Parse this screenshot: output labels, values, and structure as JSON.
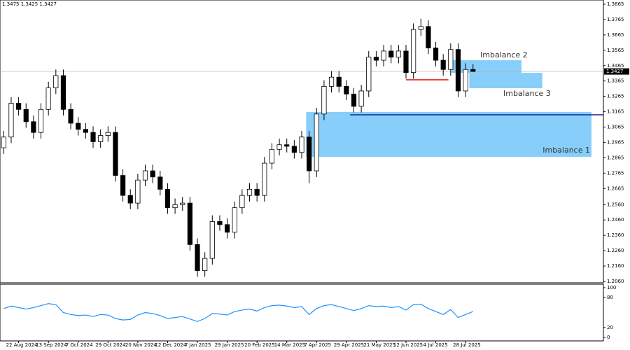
{
  "chart_data": [
    {
      "type": "candlestick",
      "header": "1.3475 1.3425 1.3427",
      "xlim": [
        0,
        81
      ],
      "ylim": [
        1.206,
        1.3865
      ],
      "yticks": [
        1.3865,
        1.3765,
        1.3665,
        1.3565,
        1.3465,
        1.3365,
        1.3265,
        1.3165,
        1.3065,
        1.2965,
        1.2865,
        1.2765,
        1.2665,
        {
          "value": 1.256,
          "label": "1.2560"
        },
        {
          "value": 1.246,
          "label": "1.2460"
        },
        {
          "value": 1.236,
          "label": "1.2360"
        },
        {
          "value": 1.226,
          "label": "1.2260"
        },
        {
          "value": 1.216,
          "label": "1.2160"
        },
        {
          "value": 1.206,
          "label": "1.2060"
        }
      ],
      "current_price": {
        "value": 1.3427,
        "label": "1.3427"
      },
      "up_color": "#ffffff",
      "down_color": "#000000",
      "candles": [
        [
          1.293,
          1.304,
          1.289,
          1.3
        ],
        [
          1.3,
          1.326,
          1.296,
          1.322
        ],
        [
          1.322,
          1.326,
          1.314,
          1.318
        ],
        [
          1.318,
          1.322,
          1.306,
          1.31
        ],
        [
          1.31,
          1.314,
          1.299,
          1.303
        ],
        [
          1.303,
          1.322,
          1.299,
          1.318
        ],
        [
          1.318,
          1.336,
          1.314,
          1.332
        ],
        [
          1.332,
          1.344,
          1.328,
          1.34
        ],
        [
          1.34,
          1.344,
          1.314,
          1.318
        ],
        [
          1.318,
          1.322,
          1.305,
          1.309
        ],
        [
          1.309,
          1.313,
          1.301,
          1.305
        ],
        [
          1.305,
          1.309,
          1.299,
          1.303
        ],
        [
          1.303,
          1.307,
          1.293,
          1.297
        ],
        [
          1.297,
          1.305,
          1.293,
          1.301
        ],
        [
          1.301,
          1.307,
          1.297,
          1.303
        ],
        [
          1.303,
          1.307,
          1.271,
          1.275
        ],
        [
          1.275,
          1.279,
          1.258,
          1.262
        ],
        [
          1.262,
          1.266,
          1.253,
          1.257
        ],
        [
          1.257,
          1.276,
          1.253,
          1.272
        ],
        [
          1.272,
          1.282,
          1.268,
          1.278
        ],
        [
          1.278,
          1.282,
          1.27,
          1.274
        ],
        [
          1.274,
          1.278,
          1.262,
          1.266
        ],
        [
          1.266,
          1.27,
          1.25,
          1.254
        ],
        [
          1.254,
          1.26,
          1.25,
          1.256
        ],
        [
          1.256,
          1.261,
          1.252,
          1.257
        ],
        [
          1.257,
          1.261,
          1.226,
          1.23
        ],
        [
          1.23,
          1.234,
          1.209,
          1.213
        ],
        [
          1.213,
          1.225,
          1.209,
          1.221
        ],
        [
          1.221,
          1.249,
          1.217,
          1.245
        ],
        [
          1.245,
          1.249,
          1.239,
          1.243
        ],
        [
          1.243,
          1.247,
          1.234,
          1.238
        ],
        [
          1.238,
          1.258,
          1.234,
          1.254
        ],
        [
          1.254,
          1.266,
          1.25,
          1.262
        ],
        [
          1.262,
          1.27,
          1.258,
          1.266
        ],
        [
          1.266,
          1.27,
          1.258,
          1.262
        ],
        [
          1.262,
          1.287,
          1.258,
          1.283
        ],
        [
          1.283,
          1.296,
          1.279,
          1.292
        ],
        [
          1.292,
          1.299,
          1.288,
          1.295
        ],
        [
          1.295,
          1.299,
          1.29,
          1.294
        ],
        [
          1.294,
          1.298,
          1.286,
          1.29
        ],
        [
          1.29,
          1.304,
          1.286,
          1.3
        ],
        [
          1.3,
          1.304,
          1.27,
          1.278
        ],
        [
          1.278,
          1.319,
          1.274,
          1.315
        ],
        [
          1.315,
          1.337,
          1.311,
          1.333
        ],
        [
          1.333,
          1.343,
          1.329,
          1.339
        ],
        [
          1.339,
          1.343,
          1.329,
          1.333
        ],
        [
          1.333,
          1.337,
          1.324,
          1.328
        ],
        [
          1.328,
          1.332,
          1.316,
          1.32
        ],
        [
          1.32,
          1.334,
          1.316,
          1.33
        ],
        [
          1.33,
          1.356,
          1.326,
          1.352
        ],
        [
          1.352,
          1.356,
          1.346,
          1.35
        ],
        [
          1.35,
          1.36,
          1.346,
          1.356
        ],
        [
          1.356,
          1.36,
          1.348,
          1.352
        ],
        [
          1.352,
          1.36,
          1.348,
          1.356
        ],
        [
          1.356,
          1.36,
          1.338,
          1.342
        ],
        [
          1.342,
          1.374,
          1.338,
          1.37
        ],
        [
          1.37,
          1.377,
          1.366,
          1.372
        ],
        [
          1.372,
          1.376,
          1.354,
          1.358
        ],
        [
          1.358,
          1.362,
          1.346,
          1.35
        ],
        [
          1.35,
          1.354,
          1.34,
          1.344
        ],
        [
          1.344,
          1.361,
          1.34,
          1.357
        ],
        [
          1.357,
          1.361,
          1.326,
          1.33
        ],
        [
          1.33,
          1.348,
          1.326,
          1.344
        ],
        [
          1.344,
          1.3475,
          1.3425,
          1.3427
        ]
      ],
      "zones": [
        {
          "label": "Imbalance 1",
          "x": [
            41.1,
            79.4
          ],
          "y": [
            1.2871,
            1.3163
          ],
          "color": "#87cefa"
        },
        {
          "label": "Imbalance 2",
          "x": [
            60.6,
            70
          ],
          "y": [
            1.3418,
            1.35
          ],
          "color": "#87cefa"
        },
        {
          "label": "Imbalance 3",
          "x": [
            63,
            72.8
          ],
          "y": [
            1.3318,
            1.3418
          ],
          "color": "#87cefa"
        }
      ],
      "levels": [
        {
          "x": [
            47,
            81
          ],
          "y": 1.3145,
          "color": "#1c1c9c"
        },
        {
          "x": [
            54.5,
            60.2
          ],
          "y": 1.3373,
          "color": "#e00000"
        }
      ]
    },
    {
      "type": "line",
      "xlim": [
        0,
        81
      ],
      "ylim": [
        0,
        100
      ],
      "yticks": [
        0,
        20,
        80,
        100
      ],
      "color": "#1e90ff",
      "values": [
        58,
        63,
        60,
        57,
        60,
        64,
        68,
        66,
        50,
        46,
        44,
        45,
        42,
        46,
        45,
        38,
        35,
        36,
        45,
        50,
        48,
        44,
        38,
        40,
        42,
        37,
        32,
        38,
        48,
        47,
        45,
        52,
        55,
        57,
        53,
        60,
        64,
        65,
        63,
        60,
        62,
        46,
        58,
        64,
        66,
        62,
        58,
        54,
        58,
        64,
        62,
        63,
        60,
        62,
        55,
        66,
        67,
        58,
        52,
        46,
        56,
        40,
        46,
        52
      ],
      "xticks": [
        {
          "value": 2,
          "label": "22 Aug 2024"
        },
        {
          "value": 6,
          "label": "13 Sep 2024"
        },
        {
          "value": 10,
          "label": "7 Oct 2024"
        },
        {
          "value": 14,
          "label": "29 Oct 2024"
        },
        {
          "value": 18,
          "label": "20 Nov 2024"
        },
        {
          "value": 22,
          "label": "12 Dec 2024"
        },
        {
          "value": 26,
          "label": "7 Jan 2025"
        },
        {
          "value": 30,
          "label": "29 Jan 2025"
        },
        {
          "value": 34,
          "label": "20 Feb 2025"
        },
        {
          "value": 38,
          "label": "14 Mar 2025"
        },
        {
          "value": 42,
          "label": "7 Apr 2025"
        },
        {
          "value": 46,
          "label": "29 Apr 2025"
        },
        {
          "value": 50,
          "label": "21 May 2025"
        },
        {
          "value": 54,
          "label": "12 Jun 2025"
        },
        {
          "value": 58,
          "label": "4 Jul 2025"
        },
        {
          "value": 62,
          "label": "28 Jul 2025"
        }
      ]
    }
  ]
}
